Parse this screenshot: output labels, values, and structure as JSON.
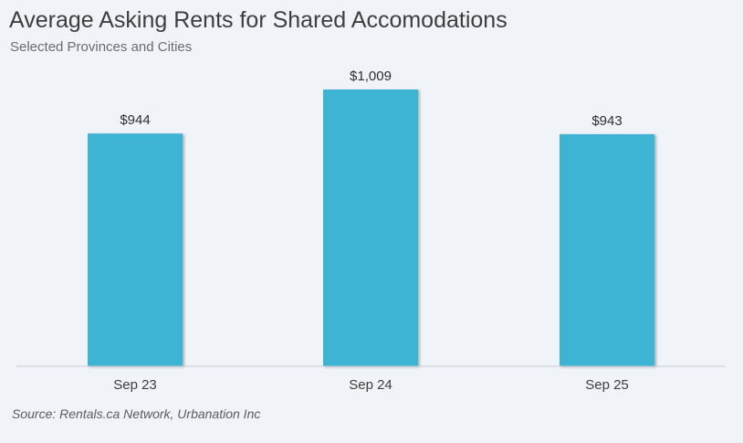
{
  "chart_data": {
    "type": "bar",
    "title": "Average Asking Rents for Shared Accomodations",
    "subtitle": "Selected Provinces and Cities",
    "categories": [
      "Sep 23",
      "Sep 24",
      "Sep 25"
    ],
    "values": [
      944,
      1009,
      943
    ],
    "value_labels": [
      "$944",
      "$1,009",
      "$943"
    ],
    "xlabel": "",
    "ylabel": "",
    "ylim": [
      600,
      1009
    ],
    "grid": false,
    "legend": "none",
    "bar_color": "#3db4d3",
    "axis_color": "#c8cdd4"
  },
  "source": "Source: Rentals.ca Network, Urbanation Inc"
}
